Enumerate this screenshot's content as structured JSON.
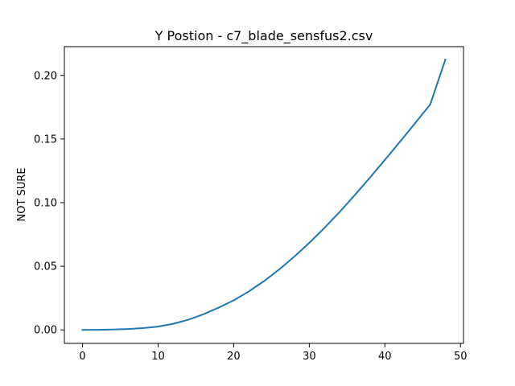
{
  "chart_data": {
    "type": "line",
    "title": "Y Postion - c7_blade_sensfus2.csv",
    "xlabel": "",
    "ylabel": "NOT SURE",
    "xlim": [
      -2.4,
      50.4
    ],
    "ylim": [
      -0.0106,
      0.2226
    ],
    "xticks": [
      0,
      10,
      20,
      30,
      40,
      50
    ],
    "xtick_labels": [
      "0",
      "10",
      "20",
      "30",
      "40",
      "50"
    ],
    "yticks": [
      0.0,
      0.05,
      0.1,
      0.15,
      0.2
    ],
    "ytick_labels": [
      "0.00",
      "0.05",
      "0.10",
      "0.15",
      "0.20"
    ],
    "grid": false,
    "legend": "none",
    "series": [
      {
        "color": "#1f77b4",
        "x": [
          0,
          2,
          4,
          6,
          8,
          10,
          12,
          14,
          16,
          18,
          20,
          22,
          24,
          26,
          28,
          30,
          32,
          34,
          36,
          38,
          40,
          42,
          44,
          46,
          48
        ],
        "y": [
          0.0,
          0.0001,
          0.0003,
          0.0007,
          0.0014,
          0.0026,
          0.0048,
          0.008,
          0.0123,
          0.0175,
          0.0232,
          0.0302,
          0.0383,
          0.0474,
          0.0575,
          0.0684,
          0.0801,
          0.0926,
          0.1058,
          0.1195,
          0.1336,
          0.1479,
          0.1625,
          0.1772,
          0.2125
        ]
      }
    ]
  }
}
